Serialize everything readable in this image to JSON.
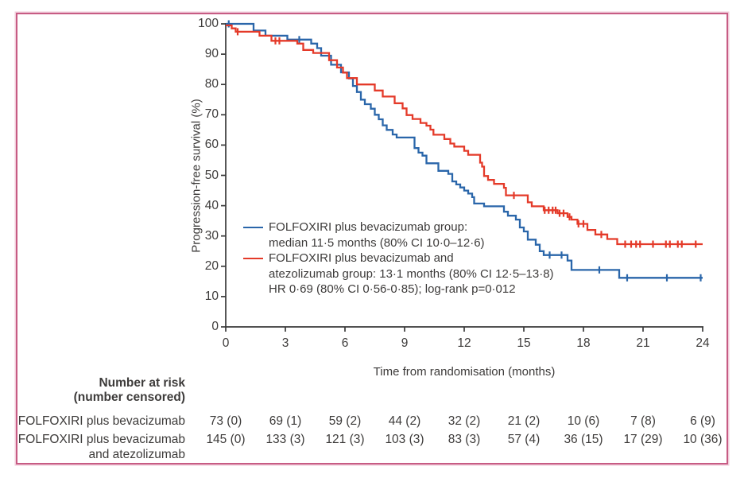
{
  "figure": {
    "frame_color": "#c75c84",
    "frame_glow_color": "#f0cbd9",
    "axis_color": "#3a3a3a",
    "text_color": "#3d3b3a"
  },
  "chart": {
    "ylabel": "Progression-free survival (%)",
    "xlabel": "Time from randomisation (months)",
    "y_ticks": [
      0,
      10,
      20,
      30,
      40,
      50,
      60,
      70,
      80,
      90,
      100
    ],
    "x_ticks": [
      0,
      3,
      6,
      9,
      12,
      15,
      18,
      21,
      24
    ]
  },
  "chart_data": {
    "type": "line",
    "subtype": "kaplan-meier-step",
    "xlabel": "Time from randomisation (months)",
    "ylabel": "Progression-free survival (%)",
    "xlim": [
      0,
      24
    ],
    "ylim": [
      0,
      100
    ],
    "grid": false,
    "legend_position": "inside-lower-left",
    "series": [
      {
        "key": "folfoxiri-bevacizumab",
        "name": "FOLFOXIRI plus bevacizumab",
        "color": "#2a66aa",
        "median_months": 11.5,
        "ci80": "10.0–12.6",
        "steps": [
          [
            0,
            100
          ],
          [
            1.4,
            97.8
          ],
          [
            2.0,
            96.1
          ],
          [
            3.1,
            94.8
          ],
          [
            4.3,
            93.5
          ],
          [
            4.6,
            92
          ],
          [
            4.8,
            89.5
          ],
          [
            5.3,
            86.5
          ],
          [
            5.8,
            84
          ],
          [
            6.2,
            82
          ],
          [
            6.4,
            79.5
          ],
          [
            6.6,
            77.5
          ],
          [
            6.8,
            75
          ],
          [
            7.0,
            73.5
          ],
          [
            7.3,
            72
          ],
          [
            7.5,
            70
          ],
          [
            7.7,
            68.5
          ],
          [
            7.9,
            66.5
          ],
          [
            8.1,
            65
          ],
          [
            8.4,
            63.5
          ],
          [
            8.6,
            62.5
          ],
          [
            9.5,
            59
          ],
          [
            9.7,
            57.5
          ],
          [
            9.9,
            56.5
          ],
          [
            10.1,
            54
          ],
          [
            10.7,
            51.5
          ],
          [
            11.2,
            50.5
          ],
          [
            11.4,
            48
          ],
          [
            11.6,
            47
          ],
          [
            11.8,
            46
          ],
          [
            12.0,
            45
          ],
          [
            12.2,
            44
          ],
          [
            12.4,
            42.8
          ],
          [
            12.5,
            40.7
          ],
          [
            13.0,
            39.8
          ],
          [
            14.0,
            38
          ],
          [
            14.2,
            36.7
          ],
          [
            14.6,
            35.4
          ],
          [
            14.8,
            32.8
          ],
          [
            15.0,
            31.5
          ],
          [
            15.2,
            28.8
          ],
          [
            15.6,
            27.1
          ],
          [
            15.8,
            25
          ],
          [
            16.0,
            23.7
          ],
          [
            17.2,
            21.9
          ],
          [
            17.4,
            18.8
          ],
          [
            19.8,
            16.2
          ],
          [
            24,
            16.2
          ]
        ],
        "censor_marks": [
          [
            0.15,
            100
          ],
          [
            3.7,
            94.8
          ],
          [
            16.3,
            23.7
          ],
          [
            16.9,
            23.7
          ],
          [
            18.8,
            18.8
          ],
          [
            20.2,
            16.2
          ],
          [
            22.2,
            16.2
          ],
          [
            23.9,
            16.2
          ]
        ]
      },
      {
        "key": "folfoxiri-bevacizumab-atezolizumab",
        "name": "FOLFOXIRI plus bevacizumab and atezolizumab",
        "color": "#e43a29",
        "median_months": 13.1,
        "ci80": "12.5–13.8",
        "steps": [
          [
            0,
            99.5
          ],
          [
            0.3,
            98.5
          ],
          [
            0.5,
            97.4
          ],
          [
            1.7,
            96.1
          ],
          [
            2.3,
            94.4
          ],
          [
            3.6,
            93.5
          ],
          [
            3.9,
            91.4
          ],
          [
            4.4,
            90.4
          ],
          [
            5.2,
            88
          ],
          [
            5.6,
            85.6
          ],
          [
            5.9,
            83.9
          ],
          [
            6.1,
            82.1
          ],
          [
            6.6,
            80
          ],
          [
            7.5,
            78
          ],
          [
            7.9,
            76
          ],
          [
            8.5,
            73.8
          ],
          [
            8.9,
            72.1
          ],
          [
            9.1,
            69.9
          ],
          [
            9.4,
            68.6
          ],
          [
            9.8,
            67.3
          ],
          [
            10.1,
            66.4
          ],
          [
            10.3,
            65.1
          ],
          [
            10.45,
            63.4
          ],
          [
            11.0,
            62
          ],
          [
            11.3,
            60.5
          ],
          [
            11.5,
            59.5
          ],
          [
            12.0,
            58.1
          ],
          [
            12.2,
            56.8
          ],
          [
            12.8,
            54.2
          ],
          [
            12.9,
            52.9
          ],
          [
            13.0,
            49.8
          ],
          [
            13.2,
            48.5
          ],
          [
            13.5,
            47.2
          ],
          [
            14.0,
            45.9
          ],
          [
            14.1,
            43.4
          ],
          [
            15.2,
            41.1
          ],
          [
            15.4,
            39.8
          ],
          [
            16.0,
            38.5
          ],
          [
            16.7,
            37.5
          ],
          [
            17.2,
            36.3
          ],
          [
            17.4,
            35.4
          ],
          [
            17.7,
            34
          ],
          [
            18.2,
            32
          ],
          [
            18.6,
            30.5
          ],
          [
            19.2,
            29
          ],
          [
            19.7,
            27.3
          ],
          [
            24,
            27.3
          ]
        ],
        "censor_marks": [
          [
            0.6,
            97.4
          ],
          [
            2.5,
            94.4
          ],
          [
            2.7,
            94.4
          ],
          [
            14.5,
            43.4
          ],
          [
            16.05,
            38.5
          ],
          [
            16.25,
            38.5
          ],
          [
            16.45,
            38.5
          ],
          [
            16.6,
            38.5
          ],
          [
            16.8,
            37.5
          ],
          [
            17.0,
            37.5
          ],
          [
            17.3,
            36.3
          ],
          [
            17.75,
            34
          ],
          [
            18.0,
            34
          ],
          [
            18.9,
            30.5
          ],
          [
            20.1,
            27.3
          ],
          [
            20.4,
            27.3
          ],
          [
            20.65,
            27.3
          ],
          [
            20.85,
            27.3
          ],
          [
            21.5,
            27.3
          ],
          [
            22.15,
            27.3
          ],
          [
            22.35,
            27.3
          ],
          [
            22.75,
            27.3
          ],
          [
            22.95,
            27.3
          ],
          [
            23.65,
            27.3
          ]
        ]
      }
    ],
    "stats": {
      "hazard_ratio": 0.69,
      "hr_ci80": "0.56-0.85",
      "log_rank_p": 0.012
    }
  },
  "legend": {
    "line1": "FOLFOXIRI plus bevacizumab group:",
    "line2": "median 11·5 months (80% CI 10·0–12·6)",
    "line3": "FOLFOXIRI plus bevacizumab and",
    "line4": "atezolizumab group: 13·1 months (80% CI 12·5–13·8)",
    "line5": "HR 0·69 (80% CI 0·56-0·85); log-rank p=0·012"
  },
  "risk_table": {
    "header_line1": "Number at risk",
    "header_line2": "(number censored)",
    "time_points": [
      0,
      3,
      6,
      9,
      12,
      15,
      18,
      21,
      24
    ],
    "rows": [
      {
        "label_lines": [
          "FOLFOXIRI plus bevacizumab"
        ],
        "values": [
          "73 (0)",
          "69 (1)",
          "59 (2)",
          "44 (2)",
          "32 (2)",
          "21 (2)",
          "10 (6)",
          "7 (8)",
          "6 (9)"
        ]
      },
      {
        "label_lines": [
          "FOLFOXIRI plus bevacizumab",
          "and atezolizumab"
        ],
        "values": [
          "145 (0)",
          "133 (3)",
          "121 (3)",
          "103 (3)",
          "83 (3)",
          "57 (4)",
          "36 (15)",
          "17 (29)",
          "10 (36)"
        ]
      }
    ]
  }
}
